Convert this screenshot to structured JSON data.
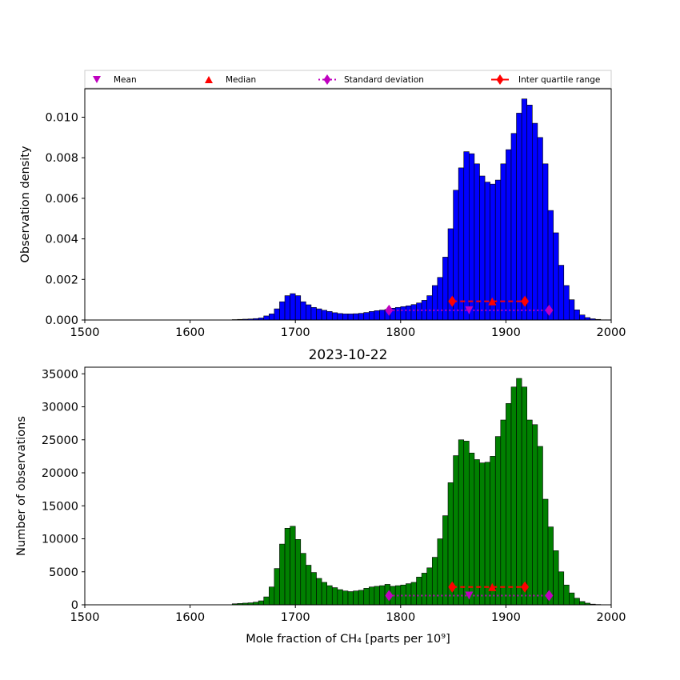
{
  "legend": {
    "mean": "Mean",
    "median": "Median",
    "std": "Standard deviation",
    "iqr": "Inter quartile range"
  },
  "colors": {
    "density_bars": "#0000ff",
    "count_bars": "#008000",
    "mean_marker": "#bf00bf",
    "std": "#bf00bf",
    "median_marker": "#ff0000",
    "iqr": "#ff0000"
  },
  "chart_data": [
    {
      "type": "bar",
      "title": "",
      "xlabel": "",
      "ylabel": "Observation density",
      "xlim": [
        1500,
        2000
      ],
      "ylim": [
        0,
        0.0114
      ],
      "xticks": [
        "1500",
        "1600",
        "1700",
        "1800",
        "1900",
        "2000"
      ],
      "yticks": [
        "0.000",
        "0.002",
        "0.004",
        "0.006",
        "0.008",
        "0.010"
      ],
      "bin_width": 5,
      "x": [
        1640,
        1645,
        1650,
        1655,
        1660,
        1665,
        1670,
        1675,
        1680,
        1685,
        1690,
        1695,
        1700,
        1705,
        1710,
        1715,
        1720,
        1725,
        1730,
        1735,
        1740,
        1745,
        1750,
        1755,
        1760,
        1765,
        1770,
        1775,
        1780,
        1785,
        1790,
        1795,
        1800,
        1805,
        1810,
        1815,
        1820,
        1825,
        1830,
        1835,
        1840,
        1845,
        1850,
        1855,
        1860,
        1865,
        1870,
        1875,
        1880,
        1885,
        1890,
        1895,
        1900,
        1905,
        1910,
        1915,
        1920,
        1925,
        1930,
        1935,
        1940,
        1945,
        1950,
        1955,
        1960,
        1965,
        1970,
        1975,
        1980,
        1985,
        1990,
        1995
      ],
      "values": [
        2e-05,
        3e-05,
        4e-05,
        5e-05,
        7e-05,
        0.0001,
        0.0002,
        0.0003,
        0.00055,
        0.0009,
        0.0012,
        0.0013,
        0.0012,
        0.0009,
        0.00075,
        0.00062,
        0.00055,
        0.00048,
        0.00042,
        0.00036,
        0.00032,
        0.0003,
        0.0003,
        0.00031,
        0.00033,
        0.00037,
        0.00042,
        0.00046,
        0.00049,
        0.00052,
        0.00058,
        0.00062,
        0.00066,
        0.0007,
        0.00076,
        0.00084,
        0.00097,
        0.0012,
        0.0017,
        0.0021,
        0.0031,
        0.0045,
        0.0064,
        0.0075,
        0.0083,
        0.0082,
        0.0077,
        0.0071,
        0.0068,
        0.0067,
        0.0069,
        0.0077,
        0.0084,
        0.0092,
        0.0102,
        0.0109,
        0.0106,
        0.0097,
        0.009,
        0.0077,
        0.0054,
        0.0043,
        0.0027,
        0.0017,
        0.001,
        0.0005,
        0.00025,
        0.00012,
        6e-05,
        3e-05,
        1e-05,
        1e-05
      ],
      "stats": {
        "mean": 1865,
        "median": 1887,
        "std_range": [
          1789,
          1941
        ],
        "iqr_range": [
          1849,
          1918
        ],
        "mean_y": 0.00048,
        "std_y": 0.00048,
        "median_y": 0.00092,
        "iqr_y": 0.00092
      }
    },
    {
      "type": "bar",
      "title": "2023-10-22",
      "xlabel": "Mole fraction of CH₄ [parts per 10⁹]",
      "ylabel": "Number of observations",
      "xlim": [
        1500,
        2000
      ],
      "ylim": [
        0,
        36000
      ],
      "xticks": [
        "1500",
        "1600",
        "1700",
        "1800",
        "1900",
        "2000"
      ],
      "yticks": [
        "0",
        "5000",
        "10000",
        "15000",
        "20000",
        "25000",
        "30000",
        "35000"
      ],
      "bin_width": 5,
      "x": [
        1640,
        1645,
        1650,
        1655,
        1660,
        1665,
        1670,
        1675,
        1680,
        1685,
        1690,
        1695,
        1700,
        1705,
        1710,
        1715,
        1720,
        1725,
        1730,
        1735,
        1740,
        1745,
        1750,
        1755,
        1760,
        1765,
        1770,
        1775,
        1780,
        1785,
        1790,
        1795,
        1800,
        1805,
        1810,
        1815,
        1820,
        1825,
        1830,
        1835,
        1840,
        1845,
        1850,
        1855,
        1860,
        1865,
        1870,
        1875,
        1880,
        1885,
        1890,
        1895,
        1900,
        1905,
        1910,
        1915,
        1920,
        1925,
        1930,
        1935,
        1940,
        1945,
        1950,
        1955,
        1960,
        1965,
        1970,
        1975,
        1980,
        1985,
        1990,
        1995
      ],
      "values": [
        150,
        200,
        250,
        300,
        400,
        600,
        1200,
        2700,
        5500,
        9200,
        11600,
        11900,
        9900,
        7800,
        6000,
        4900,
        4000,
        3400,
        2900,
        2600,
        2300,
        2100,
        2000,
        2100,
        2200,
        2500,
        2700,
        2800,
        2900,
        3100,
        2800,
        2900,
        3000,
        3200,
        3400,
        4200,
        4800,
        5600,
        7200,
        10000,
        13500,
        18500,
        22600,
        25000,
        24800,
        23000,
        22000,
        21500,
        21600,
        22500,
        25500,
        28000,
        30500,
        33000,
        34300,
        33000,
        28000,
        27300,
        24000,
        16000,
        11800,
        8200,
        5000,
        3000,
        1800,
        1000,
        500,
        250,
        100,
        50,
        25,
        10
      ],
      "stats": {
        "mean": 1865,
        "median": 1887,
        "std_range": [
          1789,
          1941
        ],
        "iqr_range": [
          1849,
          1918
        ],
        "mean_y": 1400,
        "std_y": 1400,
        "median_y": 2700,
        "iqr_y": 2700
      }
    }
  ]
}
